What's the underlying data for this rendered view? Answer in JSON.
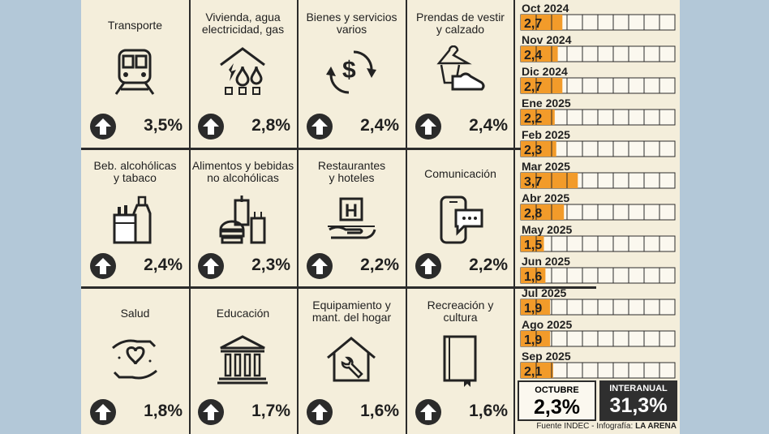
{
  "categories": [
    {
      "title": "Transporte",
      "value": "3,5%",
      "icon": "train-icon"
    },
    {
      "title": "Vivienda, agua\nelectricidad, gas",
      "value": "2,8%",
      "icon": "house-utilities-icon"
    },
    {
      "title": "Bienes y servicios\nvarios",
      "value": "2,4%",
      "icon": "money-exchange-icon"
    },
    {
      "title": "Prendas de vestir\ny calzado",
      "value": "2,4%",
      "icon": "clothes-shoe-icon"
    },
    {
      "title": "Beb. alcohólicas\ny tabaco",
      "value": "2,4%",
      "icon": "bottle-cigarette-icon"
    },
    {
      "title": "Alimentos y bebidas\nno alcohólicas",
      "value": "2,3%",
      "icon": "food-drink-icon"
    },
    {
      "title": "Restaurantes\ny hoteles",
      "value": "2,2%",
      "icon": "hotel-icon"
    },
    {
      "title": "Comunicación",
      "value": "2,2%",
      "icon": "smartphone-message-icon"
    },
    {
      "title": "Salud",
      "value": "1,8%",
      "icon": "health-hands-heart-icon"
    },
    {
      "title": "Educación",
      "value": "1,7%",
      "icon": "institution-building-icon"
    },
    {
      "title": "Equipamiento y\nmant. del hogar",
      "value": "1,6%",
      "icon": "house-wrench-icon"
    },
    {
      "title": "Recreación y\ncultura",
      "value": "1,6%",
      "icon": "book-icon"
    }
  ],
  "chart_data": {
    "type": "bar",
    "orientation": "horizontal",
    "categories": [
      "Oct 2024",
      "Nov 2024",
      "Dic 2024",
      "Ene 2025",
      "Feb 2025",
      "Mar 2025",
      "Abr 2025",
      "May 2025",
      "Jun 2025",
      "Jul 2025",
      "Ago 2025",
      "Sep 2025"
    ],
    "values": [
      2.7,
      2.4,
      2.7,
      2.2,
      2.3,
      3.7,
      2.8,
      1.5,
      1.6,
      1.9,
      1.9,
      2.1
    ],
    "labels": [
      "2,7",
      "2,4",
      "2,7",
      "2,2",
      "2,3",
      "3,7",
      "2,8",
      "1,5",
      "1,6",
      "1,9",
      "1,9",
      "2,1"
    ],
    "xlim": [
      0,
      10
    ],
    "grid": true,
    "bar_color": "#f29b2a"
  },
  "summary": {
    "octubre_label": "OCTUBRE",
    "octubre_value": "2,3%",
    "interanual_label": "INTERANUAL",
    "interanual_value": "31,3%"
  },
  "footer": {
    "source": "Fuente INDEC - Infografía:",
    "brand": "LA ARENA"
  },
  "colors": {
    "background": "#f4eedb",
    "accent": "#f29b2a",
    "dark": "#2b2b2b",
    "sidebar_bg": "#b3c8d8"
  }
}
